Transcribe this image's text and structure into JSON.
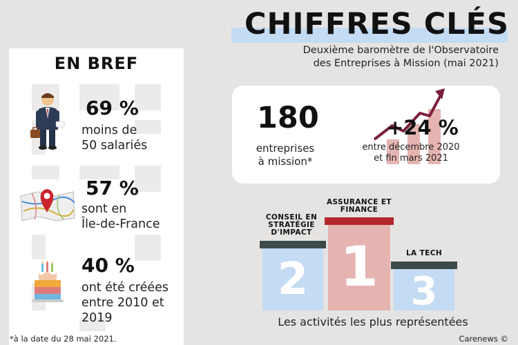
{
  "header": {
    "title": "CHIFFRES CLÉS",
    "subtitle_line1": "Deuxième baromètre de l'Observatoire",
    "subtitle_line2": "des Entreprises à Mission (mai 2021)"
  },
  "brief": {
    "title": "EN BREF",
    "stats": [
      {
        "value": "69 %",
        "line1": "moins de",
        "line2": "50 salariés",
        "line3": "",
        "icon": "businessman-icon"
      },
      {
        "value": "57 %",
        "line1": "sont en",
        "line2": "Île-de-France",
        "line3": "",
        "icon": "map-pin-icon"
      },
      {
        "value": "40 %",
        "line1": "ont été créées",
        "line2": "entre 2010 et",
        "line3": "2019",
        "icon": "birthday-cake-icon"
      }
    ]
  },
  "card": {
    "count_value": "180",
    "count_line1": "entreprises",
    "count_line2": "à mission*",
    "growth_value": "+24 %",
    "growth_line1": "entre décembre 2020",
    "growth_line2": "et fin mars 2021"
  },
  "podium": {
    "items": [
      {
        "rank": "2",
        "line1": "CONSEIL EN",
        "line2": "STRATÉGIE",
        "line3": "D'IMPACT"
      },
      {
        "rank": "1",
        "line1": "ASSURANCE ET",
        "line2": "FINANCE",
        "line3": ""
      },
      {
        "rank": "3",
        "line1": "LA TECH",
        "line2": "",
        "line3": ""
      }
    ],
    "caption": "Les activités les plus représentées"
  },
  "footnote": "*à la date du 28 mai 2021.",
  "credit": "Carenews ©",
  "colors": {
    "background": "#e6e4e2",
    "light_blue": "#c3dbf3",
    "pink": "#e5b4b1",
    "maroon": "#7a1f3d",
    "dark_red": "#b3262c",
    "slate": "#3d4a4a"
  }
}
